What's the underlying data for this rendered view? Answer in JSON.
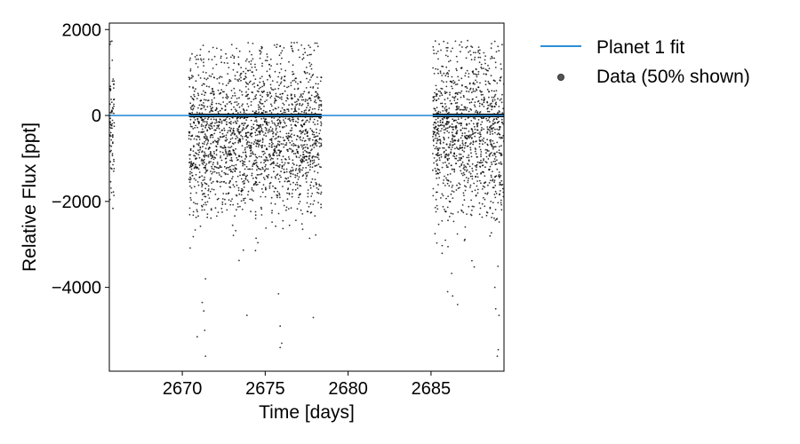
{
  "chart_data": {
    "type": "scatter",
    "title": "",
    "xlabel": "Time [days]",
    "ylabel": "Relative Flux [ppt]",
    "xlim": [
      2665.6,
      2689.4
    ],
    "ylim": [
      -5950,
      2150
    ],
    "x_ticks": [
      2670,
      2675,
      2680,
      2685
    ],
    "x_tick_labels": [
      "2670",
      "2675",
      "2680",
      "2685"
    ],
    "y_ticks": [
      2000,
      0,
      -2000,
      -4000
    ],
    "y_tick_labels": [
      "2000",
      "0",
      "−2000",
      "−4000"
    ],
    "grid": false,
    "legend": {
      "location": "outside-right",
      "entries": [
        {
          "label": "Planet 1 fit",
          "marker": "line",
          "color": "#2e8fd6"
        },
        {
          "label": "Data (50% shown)",
          "marker": "dot",
          "color": "#555555"
        }
      ]
    },
    "series": [
      {
        "name": "Planet 1 fit",
        "kind": "line",
        "color": "#2e8fd6",
        "x": [
          2665.6,
          2689.4
        ],
        "y": [
          0,
          0
        ]
      },
      {
        "name": "Data (50% shown)",
        "kind": "scatter",
        "color": "#000000",
        "segments": [
          {
            "x_start": 2665.6,
            "x_end": 2665.9,
            "median": -300,
            "spread": 900,
            "max": 1750,
            "min": -2250
          },
          {
            "x_start": 2670.4,
            "x_end": 2678.4,
            "median": -450,
            "spread": 950,
            "max": 1700,
            "min": -5600
          },
          {
            "x_start": 2685.1,
            "x_end": 2689.4,
            "median": -450,
            "spread": 1000,
            "max": 1750,
            "min": -5600
          }
        ],
        "outliers": [
          [
            2670.9,
            -5150
          ],
          [
            2671.4,
            -5600
          ],
          [
            2671.35,
            -5000
          ],
          [
            2671.2,
            -4350
          ],
          [
            2671.3,
            -4550
          ],
          [
            2671.4,
            -3800
          ],
          [
            2673.9,
            -4650
          ],
          [
            2675.9,
            -4900
          ],
          [
            2675.9,
            -5400
          ],
          [
            2676.0,
            -5300
          ],
          [
            2677.9,
            -4700
          ],
          [
            2675.8,
            -4150
          ],
          [
            2686.0,
            -4100
          ],
          [
            2686.3,
            -4200
          ],
          [
            2686.6,
            -4400
          ],
          [
            2689.0,
            -5600
          ],
          [
            2689.05,
            -5450
          ],
          [
            2688.9,
            -4500
          ],
          [
            2688.85,
            -4000
          ],
          [
            2689.1,
            -4650
          ]
        ]
      },
      {
        "name": "",
        "kind": "binned",
        "color": "#000000",
        "segments": [
          {
            "x_start": 2670.4,
            "x_end": 2678.4,
            "y": 0
          },
          {
            "x_start": 2685.1,
            "x_end": 2689.4,
            "y": 0
          }
        ]
      }
    ]
  }
}
